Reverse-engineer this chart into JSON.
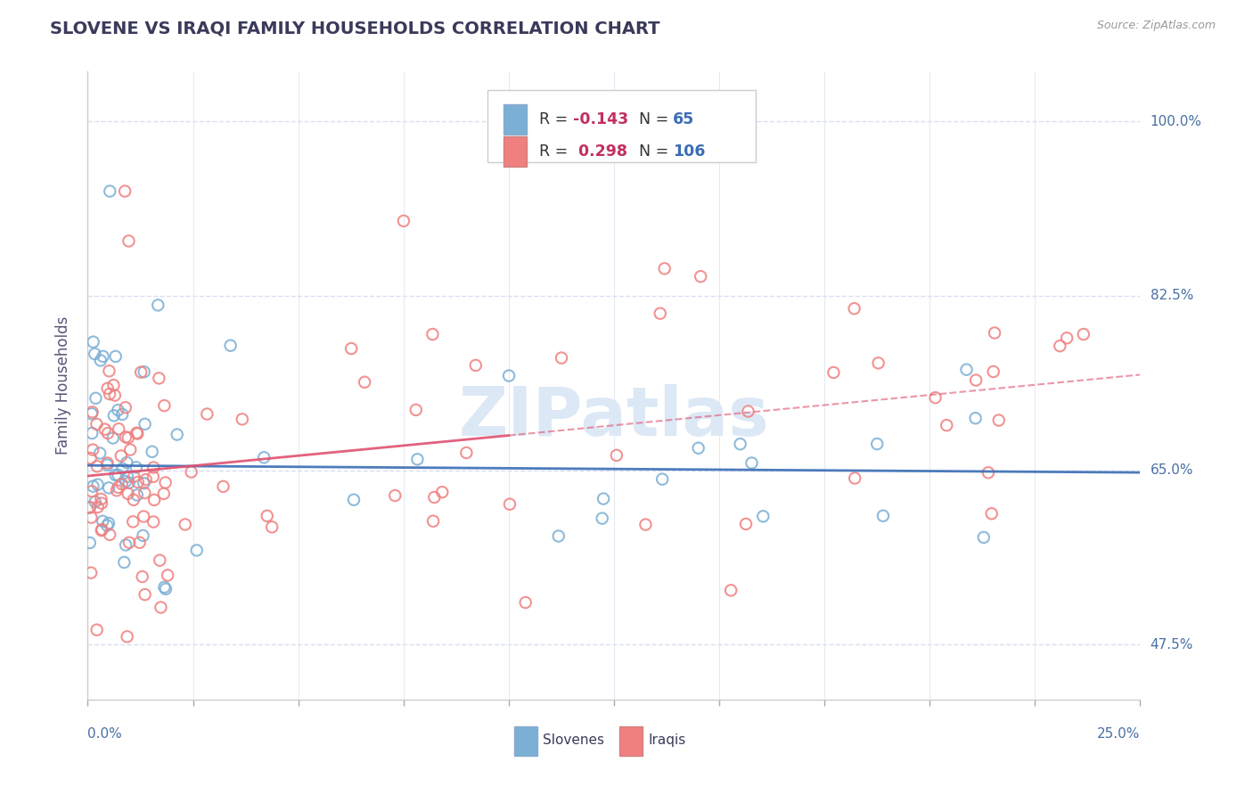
{
  "title": "SLOVENE VS IRAQI FAMILY HOUSEHOLDS CORRELATION CHART",
  "source": "Source: ZipAtlas.com",
  "ylabel": "Family Households",
  "xmin": 0.0,
  "xmax": 25.0,
  "ymin": 42.0,
  "ymax": 105.0,
  "yticks": [
    47.5,
    65.0,
    82.5,
    100.0
  ],
  "ytick_labels": [
    "47.5%",
    "65.0%",
    "82.5%",
    "100.0%"
  ],
  "slovene_color": "#7bafd4",
  "iraqi_color": "#f08080",
  "slovene_line_color": "#3a6db5",
  "iraqi_line_color": "#e05070",
  "R_slovene": -0.143,
  "N_slovene": 65,
  "R_iraqi": 0.298,
  "N_iraqi": 106,
  "background_color": "#ffffff",
  "grid_color": "#d8dff0",
  "title_color": "#3a3a5a",
  "label_color": "#4a6fa5",
  "axis_label_color": "#555577",
  "watermark_text": "ZIPatlas",
  "watermark_color": "#dce8f5",
  "r_color": "#c03060",
  "n_color": "#3a6db5"
}
